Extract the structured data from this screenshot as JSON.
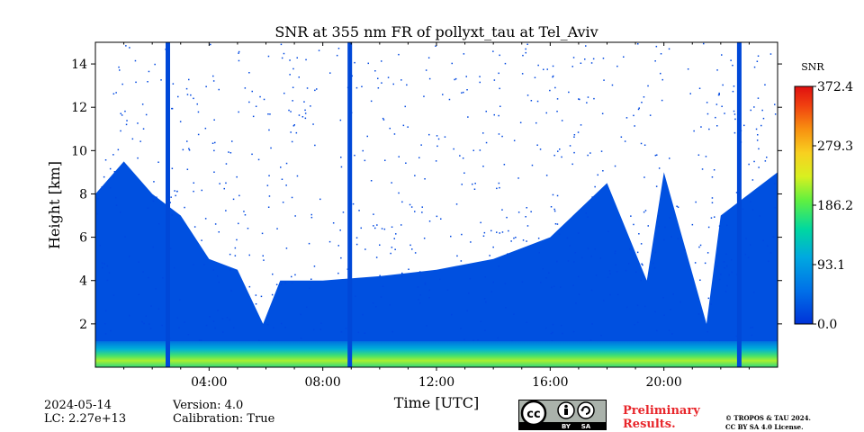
{
  "chart_data": {
    "type": "heatmap",
    "title": "SNR at 355 nm FR of pollyxt_tau at Tel_Aviv",
    "xlabel": "Time [UTC]",
    "ylabel": "Height [km]",
    "x_range_hours": [
      0,
      24
    ],
    "y_range_km": [
      0,
      15
    ],
    "x_ticks": [
      {
        "value": 4,
        "label": "04:00"
      },
      {
        "value": 8,
        "label": "08:00"
      },
      {
        "value": 12,
        "label": "12:00"
      },
      {
        "value": 16,
        "label": "16:00"
      },
      {
        "value": 20,
        "label": "20:00"
      }
    ],
    "y_ticks": [
      {
        "value": 2,
        "label": "2"
      },
      {
        "value": 4,
        "label": "4"
      },
      {
        "value": 6,
        "label": "6"
      },
      {
        "value": 8,
        "label": "8"
      },
      {
        "value": 10,
        "label": "10"
      },
      {
        "value": 12,
        "label": "12"
      },
      {
        "value": 14,
        "label": "14"
      }
    ],
    "colorbar": {
      "label": "SNR",
      "range": [
        0.0,
        372.4
      ],
      "ticks": [
        {
          "value": 0.0,
          "label": "0.0"
        },
        {
          "value": 93.1,
          "label": "93.1"
        },
        {
          "value": 186.2,
          "label": "186.2"
        },
        {
          "value": 279.3,
          "label": "279.3"
        },
        {
          "value": 372.4,
          "label": "372.4"
        }
      ],
      "colormap": [
        "#0032d8",
        "#00a0f0",
        "#00e0a0",
        "#a0f020",
        "#f8f020",
        "#f8a010",
        "#f04010",
        "#e01010"
      ]
    },
    "missing_data_stripes_hours": [
      2.55,
      8.95,
      22.65
    ],
    "signal_top_km_by_hour": [
      {
        "hour": 0.0,
        "km": 8.0
      },
      {
        "hour": 1.0,
        "km": 9.5
      },
      {
        "hour": 2.0,
        "km": 8.0
      },
      {
        "hour": 3.0,
        "km": 7.0
      },
      {
        "hour": 4.0,
        "km": 5.0
      },
      {
        "hour": 5.0,
        "km": 4.5
      },
      {
        "hour": 5.9,
        "km": 2.0
      },
      {
        "hour": 6.5,
        "km": 4.0
      },
      {
        "hour": 8.0,
        "km": 4.0
      },
      {
        "hour": 10.0,
        "km": 4.2
      },
      {
        "hour": 12.0,
        "km": 4.5
      },
      {
        "hour": 14.0,
        "km": 5.0
      },
      {
        "hour": 16.0,
        "km": 6.0
      },
      {
        "hour": 18.0,
        "km": 8.5
      },
      {
        "hour": 19.4,
        "km": 4.0
      },
      {
        "hour": 20.0,
        "km": 9.0
      },
      {
        "hour": 21.5,
        "km": 2.0
      },
      {
        "hour": 22.0,
        "km": 7.0
      },
      {
        "hour": 24.0,
        "km": 9.0
      }
    ]
  },
  "footer": {
    "date": "2024-05-14",
    "lc": "LC: 2.27e+13",
    "version": "Version: 4.0",
    "calibration": "Calibration: True",
    "preliminary_line1": "Preliminary",
    "preliminary_line2": "Results.",
    "copyright_line1": "© TROPOS & TAU 2024.",
    "copyright_line2": "CC BY SA 4.0 License.",
    "license_badge": {
      "cc": "cc",
      "by": "BY",
      "sa": "SA"
    }
  }
}
